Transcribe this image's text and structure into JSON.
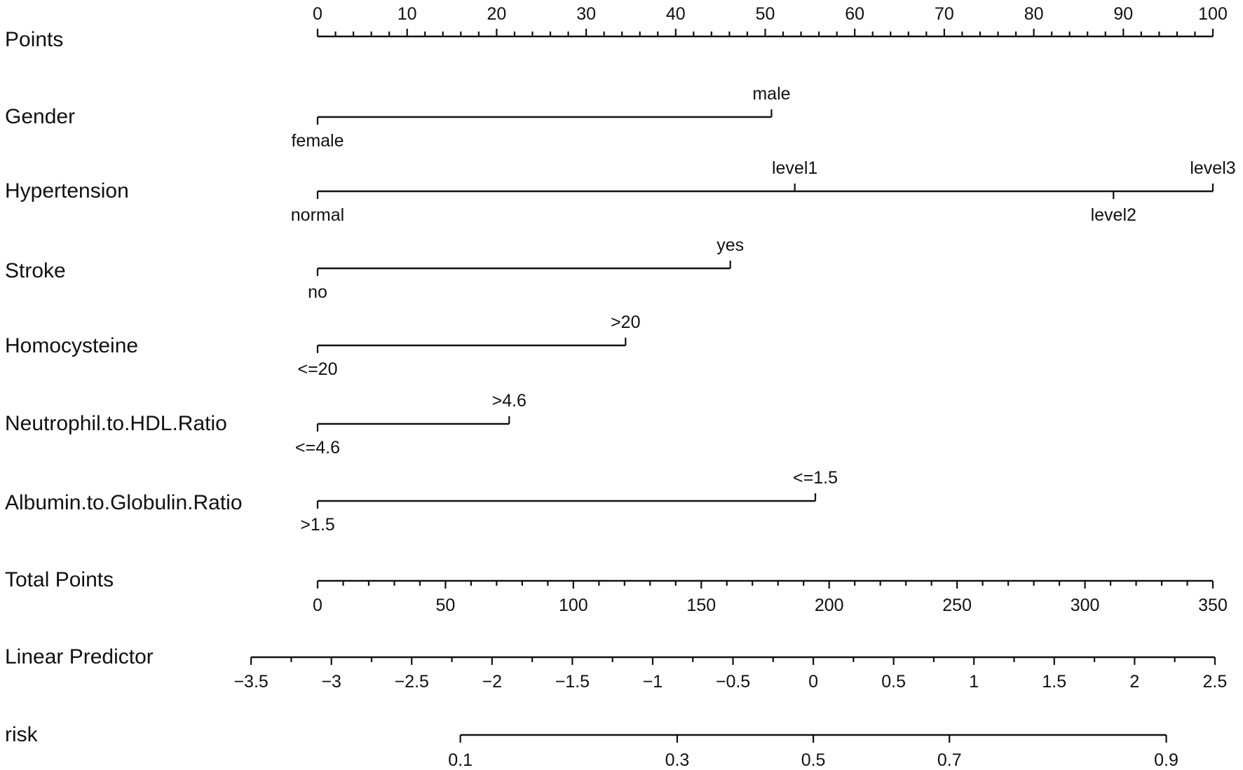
{
  "chart_data": {
    "type": "nomogram",
    "points_axis": {
      "label": "Points",
      "range": [
        0,
        100
      ],
      "major_ticks": [
        0,
        10,
        20,
        30,
        40,
        50,
        60,
        70,
        80,
        90,
        100
      ],
      "minor_step": 2
    },
    "variables": [
      {
        "label": "Gender",
        "levels": [
          {
            "name": "female",
            "points": 0,
            "side": "below"
          },
          {
            "name": "male",
            "points": 50.7,
            "side": "above"
          }
        ]
      },
      {
        "label": "Hypertension",
        "levels": [
          {
            "name": "normal",
            "points": 0,
            "side": "below"
          },
          {
            "name": "level1",
            "points": 53.3,
            "side": "above"
          },
          {
            "name": "level2",
            "points": 88.9,
            "side": "below"
          },
          {
            "name": "level3",
            "points": 100,
            "side": "above"
          }
        ]
      },
      {
        "label": "Stroke",
        "levels": [
          {
            "name": "no",
            "points": 0,
            "side": "below"
          },
          {
            "name": "yes",
            "points": 46.1,
            "side": "above"
          }
        ]
      },
      {
        "label": "Homocysteine",
        "levels": [
          {
            "name": "<=20",
            "points": 0,
            "side": "below"
          },
          {
            "name": ">20",
            "points": 34.4,
            "side": "above"
          }
        ]
      },
      {
        "label": "Neutrophil.to.HDL.Ratio",
        "levels": [
          {
            "name": "<=4.6",
            "points": 0,
            "side": "below"
          },
          {
            "name": ">4.6",
            "points": 21.4,
            "side": "above"
          }
        ]
      },
      {
        "label": "Albumin.to.Globulin.Ratio",
        "levels": [
          {
            "name": ">1.5",
            "points": 0,
            "side": "below"
          },
          {
            "name": "<=1.5",
            "points": 55.6,
            "side": "above"
          }
        ]
      }
    ],
    "total_points_axis": {
      "label": "Total Points",
      "range": [
        0,
        350
      ],
      "major_ticks": [
        0,
        50,
        100,
        150,
        200,
        250,
        300,
        350
      ],
      "minor_step": 10
    },
    "linear_predictor_axis": {
      "label": "Linear Predictor",
      "range": [
        -3.5,
        2.5
      ],
      "major_ticks": [
        -3.5,
        -3,
        -2.5,
        -2,
        -1.5,
        -1,
        -0.5,
        0,
        0.5,
        1,
        1.5,
        2,
        2.5
      ],
      "tick_labels": [
        "−3.5",
        "−3",
        "−2.5",
        "−2",
        "−1.5",
        "−1",
        "−0.5",
        "0",
        "0.5",
        "1",
        "1.5",
        "2",
        "2.5"
      ],
      "total_points_at_min": -26,
      "total_points_per_unit": 62.8
    },
    "risk_axis": {
      "label": "risk",
      "ticks": [
        0.1,
        0.3,
        0.5,
        0.7,
        0.9
      ]
    }
  }
}
